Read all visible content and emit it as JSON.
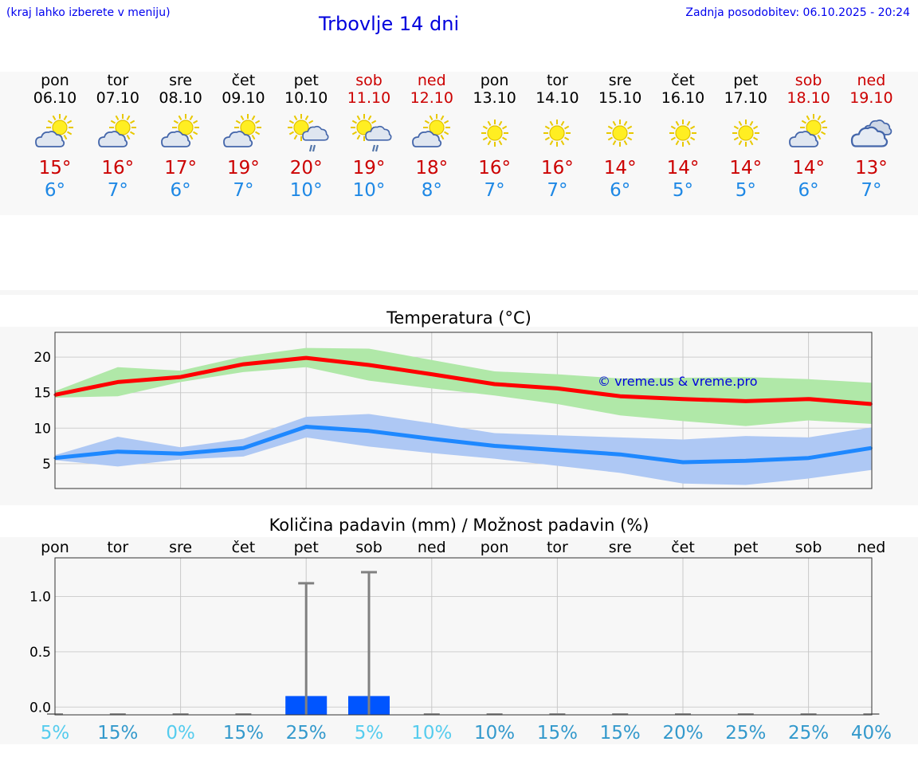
{
  "header": {
    "hint": "(kraj lahko izberete v meniju)",
    "title": "Trbovlje 14 dni",
    "updated": "Zadnja posodobitev: 06.10.2025 - 20:24"
  },
  "days": [
    {
      "name": "pon",
      "date": "06.10",
      "weekend": false,
      "icon": "partly-cloudy-icon",
      "tmax": "15°",
      "tmin": "6°"
    },
    {
      "name": "tor",
      "date": "07.10",
      "weekend": false,
      "icon": "partly-cloudy-icon",
      "tmax": "16°",
      "tmin": "7°"
    },
    {
      "name": "sre",
      "date": "08.10",
      "weekend": false,
      "icon": "partly-cloudy-icon",
      "tmax": "17°",
      "tmin": "6°"
    },
    {
      "name": "čet",
      "date": "09.10",
      "weekend": false,
      "icon": "partly-cloudy-icon",
      "tmax": "19°",
      "tmin": "7°"
    },
    {
      "name": "pet",
      "date": "10.10",
      "weekend": false,
      "icon": "sun-rain-icon",
      "tmax": "20°",
      "tmin": "10°"
    },
    {
      "name": "sob",
      "date": "11.10",
      "weekend": true,
      "icon": "sun-rain-icon",
      "tmax": "19°",
      "tmin": "10°"
    },
    {
      "name": "ned",
      "date": "12.10",
      "weekend": true,
      "icon": "partly-cloudy-icon",
      "tmax": "18°",
      "tmin": "8°"
    },
    {
      "name": "pon",
      "date": "13.10",
      "weekend": false,
      "icon": "sun-icon",
      "tmax": "16°",
      "tmin": "7°"
    },
    {
      "name": "tor",
      "date": "14.10",
      "weekend": false,
      "icon": "sun-icon",
      "tmax": "16°",
      "tmin": "7°"
    },
    {
      "name": "sre",
      "date": "15.10",
      "weekend": false,
      "icon": "sun-icon",
      "tmax": "14°",
      "tmin": "6°"
    },
    {
      "name": "čet",
      "date": "16.10",
      "weekend": false,
      "icon": "sun-icon",
      "tmax": "14°",
      "tmin": "5°"
    },
    {
      "name": "pet",
      "date": "17.10",
      "weekend": false,
      "icon": "sun-icon",
      "tmax": "14°",
      "tmin": "5°"
    },
    {
      "name": "sob",
      "date": "18.10",
      "weekend": true,
      "icon": "partly-cloudy-icon",
      "tmax": "14°",
      "tmin": "6°"
    },
    {
      "name": "ned",
      "date": "19.10",
      "weekend": true,
      "icon": "cloudy-icon",
      "tmax": "13°",
      "tmin": "7°"
    }
  ],
  "chart_data": [
    {
      "type": "line",
      "title": "Temperatura (°C)",
      "watermark": "© vreme.us & vreme.pro",
      "ylim": [
        1.5,
        23.5
      ],
      "yticks": [
        5,
        10,
        15,
        20
      ],
      "grid": true,
      "x": [
        0,
        1,
        2,
        3,
        4,
        5,
        6,
        7,
        8,
        9,
        10,
        11,
        12,
        13
      ],
      "series": [
        {
          "role": "max",
          "color": "#ff0000",
          "values": [
            14.7,
            16.5,
            17.2,
            19.0,
            19.9,
            18.9,
            17.6,
            16.2,
            15.6,
            14.5,
            14.1,
            13.8,
            14.1,
            13.4
          ],
          "band_low": [
            14.3,
            14.5,
            16.5,
            17.9,
            18.6,
            16.7,
            15.6,
            14.6,
            13.4,
            11.8,
            11.0,
            10.3,
            11.1,
            10.6
          ],
          "band_high": [
            15.2,
            18.6,
            18.1,
            20.1,
            21.3,
            21.2,
            19.6,
            18.0,
            17.6,
            17.0,
            17.1,
            17.2,
            16.9,
            16.4
          ],
          "band_color": "#b0e8a8"
        },
        {
          "role": "min",
          "color": "#1e88ff",
          "values": [
            5.8,
            6.7,
            6.4,
            7.2,
            10.2,
            9.6,
            8.5,
            7.5,
            6.9,
            6.3,
            5.2,
            5.4,
            5.8,
            7.2
          ],
          "band_low": [
            5.5,
            4.6,
            5.6,
            6.0,
            8.7,
            7.4,
            6.5,
            5.7,
            4.7,
            3.7,
            2.2,
            2.0,
            2.9,
            4.1
          ],
          "band_high": [
            6.2,
            8.8,
            7.3,
            8.5,
            11.6,
            12.0,
            10.7,
            9.3,
            9.0,
            8.7,
            8.4,
            8.9,
            8.7,
            10.1
          ],
          "band_color": "#aec8f4"
        }
      ]
    },
    {
      "type": "bar",
      "title": "Količina padavin (mm) / Možnost padavin (%)",
      "categories": [
        "pon",
        "tor",
        "sre",
        "čet",
        "pet",
        "sob",
        "ned",
        "pon",
        "tor",
        "sre",
        "čet",
        "pet",
        "sob",
        "ned"
      ],
      "ylim": [
        -0.07,
        1.35
      ],
      "yticks": [
        "0.0",
        "0.5",
        "1.0"
      ],
      "grid": true,
      "values": [
        0,
        0,
        0,
        0,
        0.1,
        0.1,
        0,
        0,
        0,
        0,
        0,
        0,
        0,
        0
      ],
      "whisker_max": [
        0,
        0,
        0,
        0,
        1.12,
        1.22,
        0,
        0,
        0,
        0,
        0,
        0,
        0,
        0
      ],
      "bar_color": "#0055ff",
      "probability": [
        "5%",
        "15%",
        "0%",
        "15%",
        "25%",
        "5%",
        "10%",
        "10%",
        "15%",
        "15%",
        "20%",
        "25%",
        "25%",
        "40%"
      ],
      "probability_colors": [
        "#55ccee",
        "#3399cc",
        "#55ccee",
        "#3399cc",
        "#3399cc",
        "#55ccee",
        "#55ccee",
        "#3399cc",
        "#3399cc",
        "#3399cc",
        "#3399cc",
        "#3399cc",
        "#3399cc",
        "#3399cc"
      ]
    }
  ]
}
